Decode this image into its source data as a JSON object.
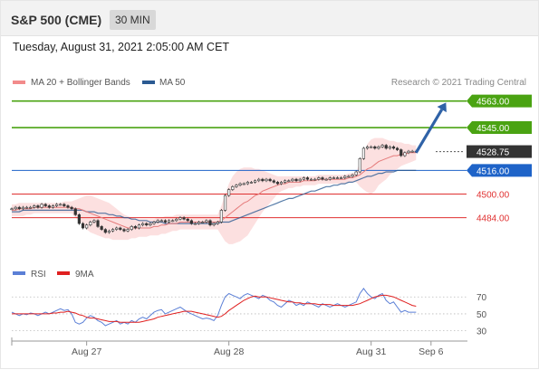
{
  "header": {
    "symbol": "S&P 500 (CME)",
    "interval": "30 MIN"
  },
  "timestamp": "Tuesday, August 31, 2021 2:05:00 AM CET",
  "legend": {
    "items": [
      {
        "label": "MA 20 + Bollinger Bands",
        "color": "#f28b8b"
      },
      {
        "label": "MA 50",
        "color": "#2b5a92"
      }
    ],
    "credit": "Research © 2021 Trading Central"
  },
  "rsi_legend": {
    "items": [
      {
        "label": "RSI",
        "color": "#5b7fd6"
      },
      {
        "label": "9MA",
        "color": "#e02020"
      }
    ]
  },
  "chart_data": {
    "type": "line",
    "title": "",
    "instrument": "S&P 500 (CME)",
    "timeframe": "30 MIN",
    "price_ylim": [
      4458,
      4572
    ],
    "levels": [
      {
        "value": 4563.0,
        "label": "4563.00",
        "kind": "resistance",
        "color": "#4aa312"
      },
      {
        "value": 4545.0,
        "label": "4545.00",
        "kind": "resistance",
        "color": "#4aa312"
      },
      {
        "value": 4528.75,
        "label": "4528.75",
        "kind": "last",
        "color": "#333333"
      },
      {
        "value": 4516.0,
        "label": "4516.00",
        "kind": "pivot",
        "color": "#1e63c8"
      },
      {
        "value": 4500.0,
        "label": "4500.00",
        "kind": "support",
        "color": "#e03030"
      },
      {
        "value": 4484.0,
        "label": "4484.00",
        "kind": "support",
        "color": "#e03030"
      }
    ],
    "x_ticks": [
      "Aug 27",
      "Aug 28",
      "Aug 31",
      "Sep 6"
    ],
    "x_tick_index": [
      20,
      58,
      96,
      112
    ],
    "forecast_arrow": {
      "from_index": 108,
      "from": 4528,
      "to_index": 116,
      "to": 4562
    },
    "price_close": [
      4490,
      4491,
      4490,
      4491,
      4491,
      4491,
      4492,
      4491,
      4493,
      4492,
      4491,
      4492,
      4493,
      4493,
      4492,
      4491,
      4490,
      4486,
      4480,
      4477,
      4479,
      4481,
      4482,
      4478,
      4476,
      4474,
      4475,
      4476,
      4477,
      4476,
      4475,
      4476,
      4478,
      4477,
      4479,
      4480,
      4479,
      4480,
      4481,
      4482,
      4482,
      4481,
      4482,
      4482,
      4483,
      4484,
      4483,
      4482,
      4480,
      4480,
      4481,
      4481,
      4482,
      4479,
      4480,
      4481,
      4489,
      4499,
      4503,
      4505,
      4506,
      4507,
      4507,
      4508,
      4508,
      4509,
      4510,
      4509,
      4510,
      4509,
      4508,
      4507,
      4508,
      4509,
      4509,
      4510,
      4509,
      4510,
      4511,
      4510,
      4510,
      4510,
      4511,
      4510,
      4510,
      4511,
      4511,
      4511,
      4511,
      4512,
      4512,
      4513,
      4515,
      4524,
      4531,
      4532,
      4532,
      4531,
      4532,
      4533,
      4531,
      4532,
      4531,
      4530,
      4526,
      4528,
      4529,
      4529,
      4528.75
    ],
    "ma20": [
      4489,
      4489,
      4490,
      4490,
      4490,
      4490,
      4491,
      4491,
      4491,
      4491,
      4491,
      4491,
      4491,
      4491,
      4491,
      4491,
      4491,
      4490,
      4490,
      4489,
      4488,
      4487,
      4486,
      4485,
      4484,
      4483,
      4482,
      4481,
      4480,
      4479,
      4478,
      4477,
      4477,
      4477,
      4477,
      4477,
      4477,
      4477,
      4478,
      4478,
      4479,
      4479,
      4480,
      4480,
      4480,
      4481,
      4481,
      4481,
      4481,
      4481,
      4481,
      4481,
      4481,
      4481,
      4481,
      4481,
      4482,
      4484,
      4486,
      4488,
      4490,
      4492,
      4494,
      4495,
      4497,
      4499,
      4500,
      4502,
      4503,
      4504,
      4505,
      4506,
      4507,
      4507,
      4508,
      4508,
      4508,
      4508,
      4509,
      4509,
      4509,
      4509,
      4510,
      4510,
      4510,
      4510,
      4510,
      4510,
      4510,
      4510,
      4511,
      4511,
      4512,
      4513,
      4515,
      4517,
      4518,
      4520,
      4522,
      4523,
      4524,
      4525,
      4526,
      4526,
      4527,
      4527,
      4528,
      4528,
      4528
    ],
    "bb_upper": [
      4493,
      4493,
      4494,
      4494,
      4494,
      4494,
      4494,
      4494,
      4494,
      4494,
      4494,
      4494,
      4494,
      4494,
      4495,
      4495,
      4495,
      4496,
      4497,
      4498,
      4499,
      4499,
      4498,
      4497,
      4496,
      4495,
      4494,
      4492,
      4490,
      4488,
      4486,
      4485,
      4484,
      4483,
      4483,
      4483,
      4483,
      4483,
      4483,
      4484,
      4484,
      4485,
      4485,
      4485,
      4486,
      4486,
      4486,
      4486,
      4486,
      4486,
      4486,
      4486,
      4486,
      4486,
      4486,
      4486,
      4492,
      4500,
      4507,
      4512,
      4515,
      4517,
      4518,
      4518,
      4518,
      4517,
      4517,
      4516,
      4515,
      4514,
      4513,
      4512,
      4512,
      4512,
      4512,
      4512,
      4512,
      4512,
      4512,
      4512,
      4512,
      4512,
      4513,
      4513,
      4513,
      4513,
      4513,
      4513,
      4513,
      4513,
      4514,
      4514,
      4515,
      4521,
      4528,
      4534,
      4537,
      4538,
      4538,
      4538,
      4537,
      4536,
      4536,
      4535,
      4535,
      4534,
      4534,
      4533,
      4533
    ],
    "bb_lower": [
      4485,
      4485,
      4485,
      4485,
      4486,
      4486,
      4487,
      4487,
      4487,
      4487,
      4487,
      4487,
      4487,
      4487,
      4487,
      4487,
      4487,
      4484,
      4482,
      4479,
      4476,
      4474,
      4473,
      4472,
      4471,
      4470,
      4470,
      4469,
      4469,
      4469,
      4469,
      4469,
      4470,
      4470,
      4471,
      4471,
      4471,
      4472,
      4472,
      4472,
      4473,
      4473,
      4474,
      4475,
      4475,
      4476,
      4476,
      4476,
      4476,
      4476,
      4476,
      4476,
      4476,
      4476,
      4476,
      4476,
      4472,
      4468,
      4466,
      4466,
      4467,
      4468,
      4470,
      4472,
      4476,
      4480,
      4484,
      4488,
      4491,
      4494,
      4497,
      4500,
      4502,
      4503,
      4504,
      4504,
      4505,
      4505,
      4506,
      4506,
      4506,
      4506,
      4507,
      4507,
      4507,
      4507,
      4507,
      4507,
      4507,
      4507,
      4508,
      4508,
      4508,
      4505,
      4503,
      4501,
      4500,
      4502,
      4506,
      4508,
      4510,
      4513,
      4515,
      4517,
      4519,
      4520,
      4521,
      4522,
      4523
    ],
    "ma50": [
      4488,
      4488,
      4488,
      4489,
      4489,
      4489,
      4489,
      4489,
      4489,
      4489,
      4489,
      4489,
      4489,
      4489,
      4489,
      4489,
      4489,
      4489,
      4489,
      4489,
      4488,
      4488,
      4488,
      4487,
      4487,
      4487,
      4486,
      4486,
      4485,
      4485,
      4484,
      4484,
      4483,
      4483,
      4482,
      4482,
      4482,
      4481,
      4481,
      4481,
      4481,
      4480,
      4480,
      4480,
      4480,
      4480,
      4480,
      4480,
      4480,
      4480,
      4480,
      4480,
      4480,
      4480,
      4480,
      4480,
      4481,
      4481,
      4481,
      4482,
      4483,
      4484,
      4485,
      4486,
      4487,
      4488,
      4489,
      4490,
      4491,
      4492,
      4493,
      4494,
      4495,
      4496,
      4497,
      4497,
      4498,
      4499,
      4500,
      4501,
      4502,
      4502,
      4503,
      4504,
      4505,
      4505,
      4506,
      4506,
      4507,
      4507,
      4508,
      4508,
      4509,
      4510,
      4511,
      4512,
      4512,
      4513,
      4514,
      4514,
      4515,
      4515,
      4515,
      4516,
      4516,
      4516,
      4516,
      4516,
      4516
    ],
    "rsi_ylim": [
      20,
      82
    ],
    "rsi_ticks": [
      70,
      50,
      30
    ],
    "rsi": [
      52,
      50,
      48,
      50,
      49,
      51,
      50,
      48,
      50,
      52,
      50,
      52,
      54,
      56,
      54,
      55,
      50,
      40,
      38,
      40,
      45,
      48,
      46,
      42,
      40,
      36,
      38,
      40,
      42,
      38,
      40,
      38,
      42,
      40,
      44,
      46,
      44,
      48,
      52,
      54,
      55,
      50,
      52,
      54,
      56,
      58,
      55,
      52,
      50,
      48,
      46,
      44,
      45,
      44,
      42,
      48,
      60,
      70,
      74,
      72,
      70,
      68,
      72,
      74,
      72,
      70,
      68,
      72,
      70,
      66,
      64,
      60,
      58,
      62,
      66,
      64,
      60,
      62,
      60,
      64,
      62,
      60,
      58,
      62,
      60,
      58,
      60,
      62,
      60,
      58,
      60,
      62,
      64,
      74,
      80,
      74,
      70,
      68,
      72,
      74,
      66,
      62,
      64,
      58,
      52,
      54,
      52,
      52,
      52
    ],
    "rsi_9ma": [
      50,
      50,
      50,
      50,
      50,
      50,
      50,
      50,
      50,
      50,
      50,
      51,
      51,
      52,
      52,
      53,
      52,
      51,
      49,
      48,
      46,
      45,
      45,
      44,
      43,
      42,
      41,
      41,
      41,
      40,
      40,
      40,
      40,
      40,
      40,
      41,
      42,
      43,
      44,
      46,
      47,
      48,
      49,
      50,
      51,
      52,
      53,
      53,
      53,
      52,
      51,
      50,
      49,
      48,
      47,
      46,
      47,
      50,
      54,
      57,
      60,
      63,
      66,
      68,
      70,
      71,
      70,
      70,
      70,
      69,
      68,
      67,
      66,
      65,
      64,
      64,
      63,
      63,
      62,
      62,
      62,
      62,
      61,
      61,
      61,
      61,
      60,
      60,
      60,
      60,
      60,
      60,
      61,
      62,
      64,
      66,
      68,
      70,
      71,
      72,
      72,
      71,
      70,
      68,
      66,
      64,
      62,
      60,
      59
    ]
  }
}
